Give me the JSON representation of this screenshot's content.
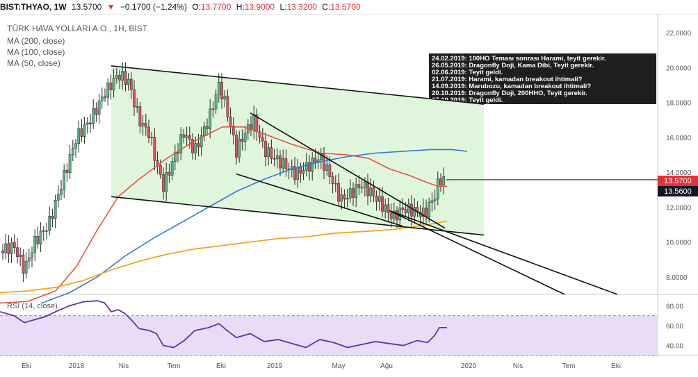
{
  "header": {
    "symbol": "BIST:THYAO, 1W",
    "last": "13.5700",
    "change_arrow": "▼",
    "change": "−0.1700 (−1.24%)",
    "o_label": "O:",
    "o_value": "13.7700",
    "h_label": "H:",
    "h_value": "13.9000",
    "l_label": "L:",
    "l_value": "13.3200",
    "c_label": "C:",
    "c_value": "13.5700"
  },
  "legend": {
    "title": "TÜRK HAVA YOLLARI A.O., 1H, BIST",
    "ma200": "MA (200, close)",
    "ma100": "MA (100, close)",
    "ma50": "MA (50, close)"
  },
  "annotation_lines": [
    "24.02.2019: 100HO Teması sonrası Harami, teyit gerekir.",
    "26.05.2019: Dragonfly Doji, Kama Dibi, Teyit gerekir.",
    "02.06.2019: Teyit geldi.",
    "21.07.2019: Harami, kamadan breakout ihtimali?",
    "14.09.2019: Marubozu, kamadan breakout ihtimali?",
    "20.10.2019: Dragonfly Doji, 200HHO, Teyit gerekir.",
    "27.10.2019: Teyit geldi."
  ],
  "price_labels": {
    "last": "13.5700",
    "other": "13.5600"
  },
  "colors": {
    "up": "#53b987",
    "down": "#eb4d5c",
    "ma50": "#e8513f",
    "ma100": "#2f7bd6",
    "ma200": "#f7a21b",
    "rsi": "#5637a8",
    "channel_fill": "#dff5dc",
    "rsi_band": "#e8dcf7",
    "last_label": "#e0333a",
    "annotation_bg": "#1e1e1e"
  },
  "chart_data": [
    {
      "type": "candlestick",
      "x_ticks": [
        "Eki",
        "2018",
        "Nis",
        "Tem",
        "Eki",
        "2019",
        "May",
        "Ağu",
        "2020",
        "Nis",
        "Tem",
        "Eki"
      ],
      "y_ticks": [
        "8.0000",
        "10.0000",
        "12.0000",
        "14.0000",
        "16.0000",
        "18.0000",
        "20.0000",
        "22.0000"
      ],
      "ylim": [
        7,
        23
      ],
      "scale": "linear",
      "series": [
        {
          "name": "MA (50, close)",
          "points": [
            [
              0,
              6.5
            ],
            [
              40,
              6.6
            ],
            [
              80,
              7.2
            ],
            [
              110,
              8.6
            ],
            [
              140,
              10.7
            ],
            [
              170,
              12.6
            ],
            [
              200,
              13.6
            ],
            [
              240,
              14.8
            ],
            [
              280,
              15.8
            ],
            [
              320,
              16.6
            ],
            [
              350,
              16.6
            ],
            [
              380,
              16.2
            ],
            [
              420,
              15.6
            ],
            [
              460,
              15.1
            ],
            [
              500,
              15.0
            ],
            [
              530,
              14.8
            ],
            [
              560,
              14.2
            ],
            [
              590,
              13.8
            ],
            [
              615,
              13.4
            ],
            [
              630,
              13.2
            ],
            [
              643,
              13.2
            ]
          ]
        },
        {
          "name": "MA (100, close)",
          "points": [
            [
              60,
              6.5
            ],
            [
              100,
              7.1
            ],
            [
              140,
              8.0
            ],
            [
              180,
              9.2
            ],
            [
              220,
              10.2
            ],
            [
              260,
              11.1
            ],
            [
              300,
              12.0
            ],
            [
              340,
              12.9
            ],
            [
              380,
              13.6
            ],
            [
              420,
              14.2
            ],
            [
              460,
              14.6
            ],
            [
              500,
              14.9
            ],
            [
              540,
              15.1
            ],
            [
              580,
              15.2
            ],
            [
              620,
              15.3
            ],
            [
              650,
              15.3
            ],
            [
              672,
              15.2
            ]
          ]
        },
        {
          "name": "MA (200, close)",
          "points": [
            [
              0,
              7.1
            ],
            [
              40,
              7.2
            ],
            [
              80,
              7.4
            ],
            [
              120,
              7.8
            ],
            [
              160,
              8.4
            ],
            [
              200,
              8.9
            ],
            [
              240,
              9.3
            ],
            [
              280,
              9.6
            ],
            [
              320,
              9.8
            ],
            [
              360,
              10.0
            ],
            [
              400,
              10.2
            ],
            [
              440,
              10.3
            ],
            [
              480,
              10.5
            ],
            [
              520,
              10.6
            ],
            [
              560,
              10.7
            ],
            [
              600,
              10.9
            ],
            [
              630,
              11.1
            ],
            [
              643,
              11.2
            ]
          ]
        },
        {
          "name": "Channel top",
          "points": [
            [
              160,
              20.1
            ],
            [
              696,
              17.9
            ]
          ]
        },
        {
          "name": "Channel bottom",
          "points": [
            [
              160,
              12.6
            ],
            [
              696,
              10.4
            ]
          ]
        },
        {
          "name": "Wedge upper",
          "points": [
            [
              360,
              17.4
            ],
            [
              640,
              10.8
            ]
          ]
        },
        {
          "name": "Wedge lower",
          "points": [
            [
              340,
              13.9
            ],
            [
              580,
              10.9
            ]
          ]
        },
        {
          "name": "Extended lines",
          "points": [
            [
              560,
              11.8
            ],
            [
              812,
              7.0
            ],
            [
              560,
              11.8
            ],
            [
              888,
              7.0
            ]
          ]
        }
      ],
      "last_price_line": 13.57
    },
    {
      "type": "line",
      "title": "RSI (14, close)",
      "y_ticks": [
        "40.00",
        "60.00",
        "80.00"
      ],
      "ylim": [
        30,
        90
      ],
      "band": [
        30,
        70
      ],
      "series": [
        {
          "name": "RSI (14, close)",
          "points": [
            [
              0,
              74
            ],
            [
              20,
              70
            ],
            [
              35,
              63
            ],
            [
              50,
              66
            ],
            [
              65,
              69
            ],
            [
              80,
              74
            ],
            [
              100,
              80
            ],
            [
              120,
              84
            ],
            [
              140,
              85
            ],
            [
              150,
              83
            ],
            [
              160,
              74
            ],
            [
              170,
              76
            ],
            [
              180,
              72
            ],
            [
              190,
              65
            ],
            [
              200,
              57
            ],
            [
              215,
              55
            ],
            [
              225,
              52
            ],
            [
              235,
              40
            ],
            [
              250,
              38
            ],
            [
              265,
              45
            ],
            [
              280,
              55
            ],
            [
              300,
              58
            ],
            [
              315,
              62
            ],
            [
              325,
              56
            ],
            [
              340,
              48
            ],
            [
              360,
              52
            ],
            [
              380,
              44
            ],
            [
              400,
              46
            ],
            [
              420,
              42
            ],
            [
              440,
              38
            ],
            [
              460,
              46
            ],
            [
              480,
              43
            ],
            [
              500,
              38
            ],
            [
              520,
              41
            ],
            [
              540,
              44
            ],
            [
              560,
              42
            ],
            [
              580,
              40
            ],
            [
              600,
              45
            ],
            [
              615,
              43
            ],
            [
              625,
              50
            ],
            [
              632,
              58
            ],
            [
              643,
              58
            ]
          ]
        }
      ]
    }
  ]
}
